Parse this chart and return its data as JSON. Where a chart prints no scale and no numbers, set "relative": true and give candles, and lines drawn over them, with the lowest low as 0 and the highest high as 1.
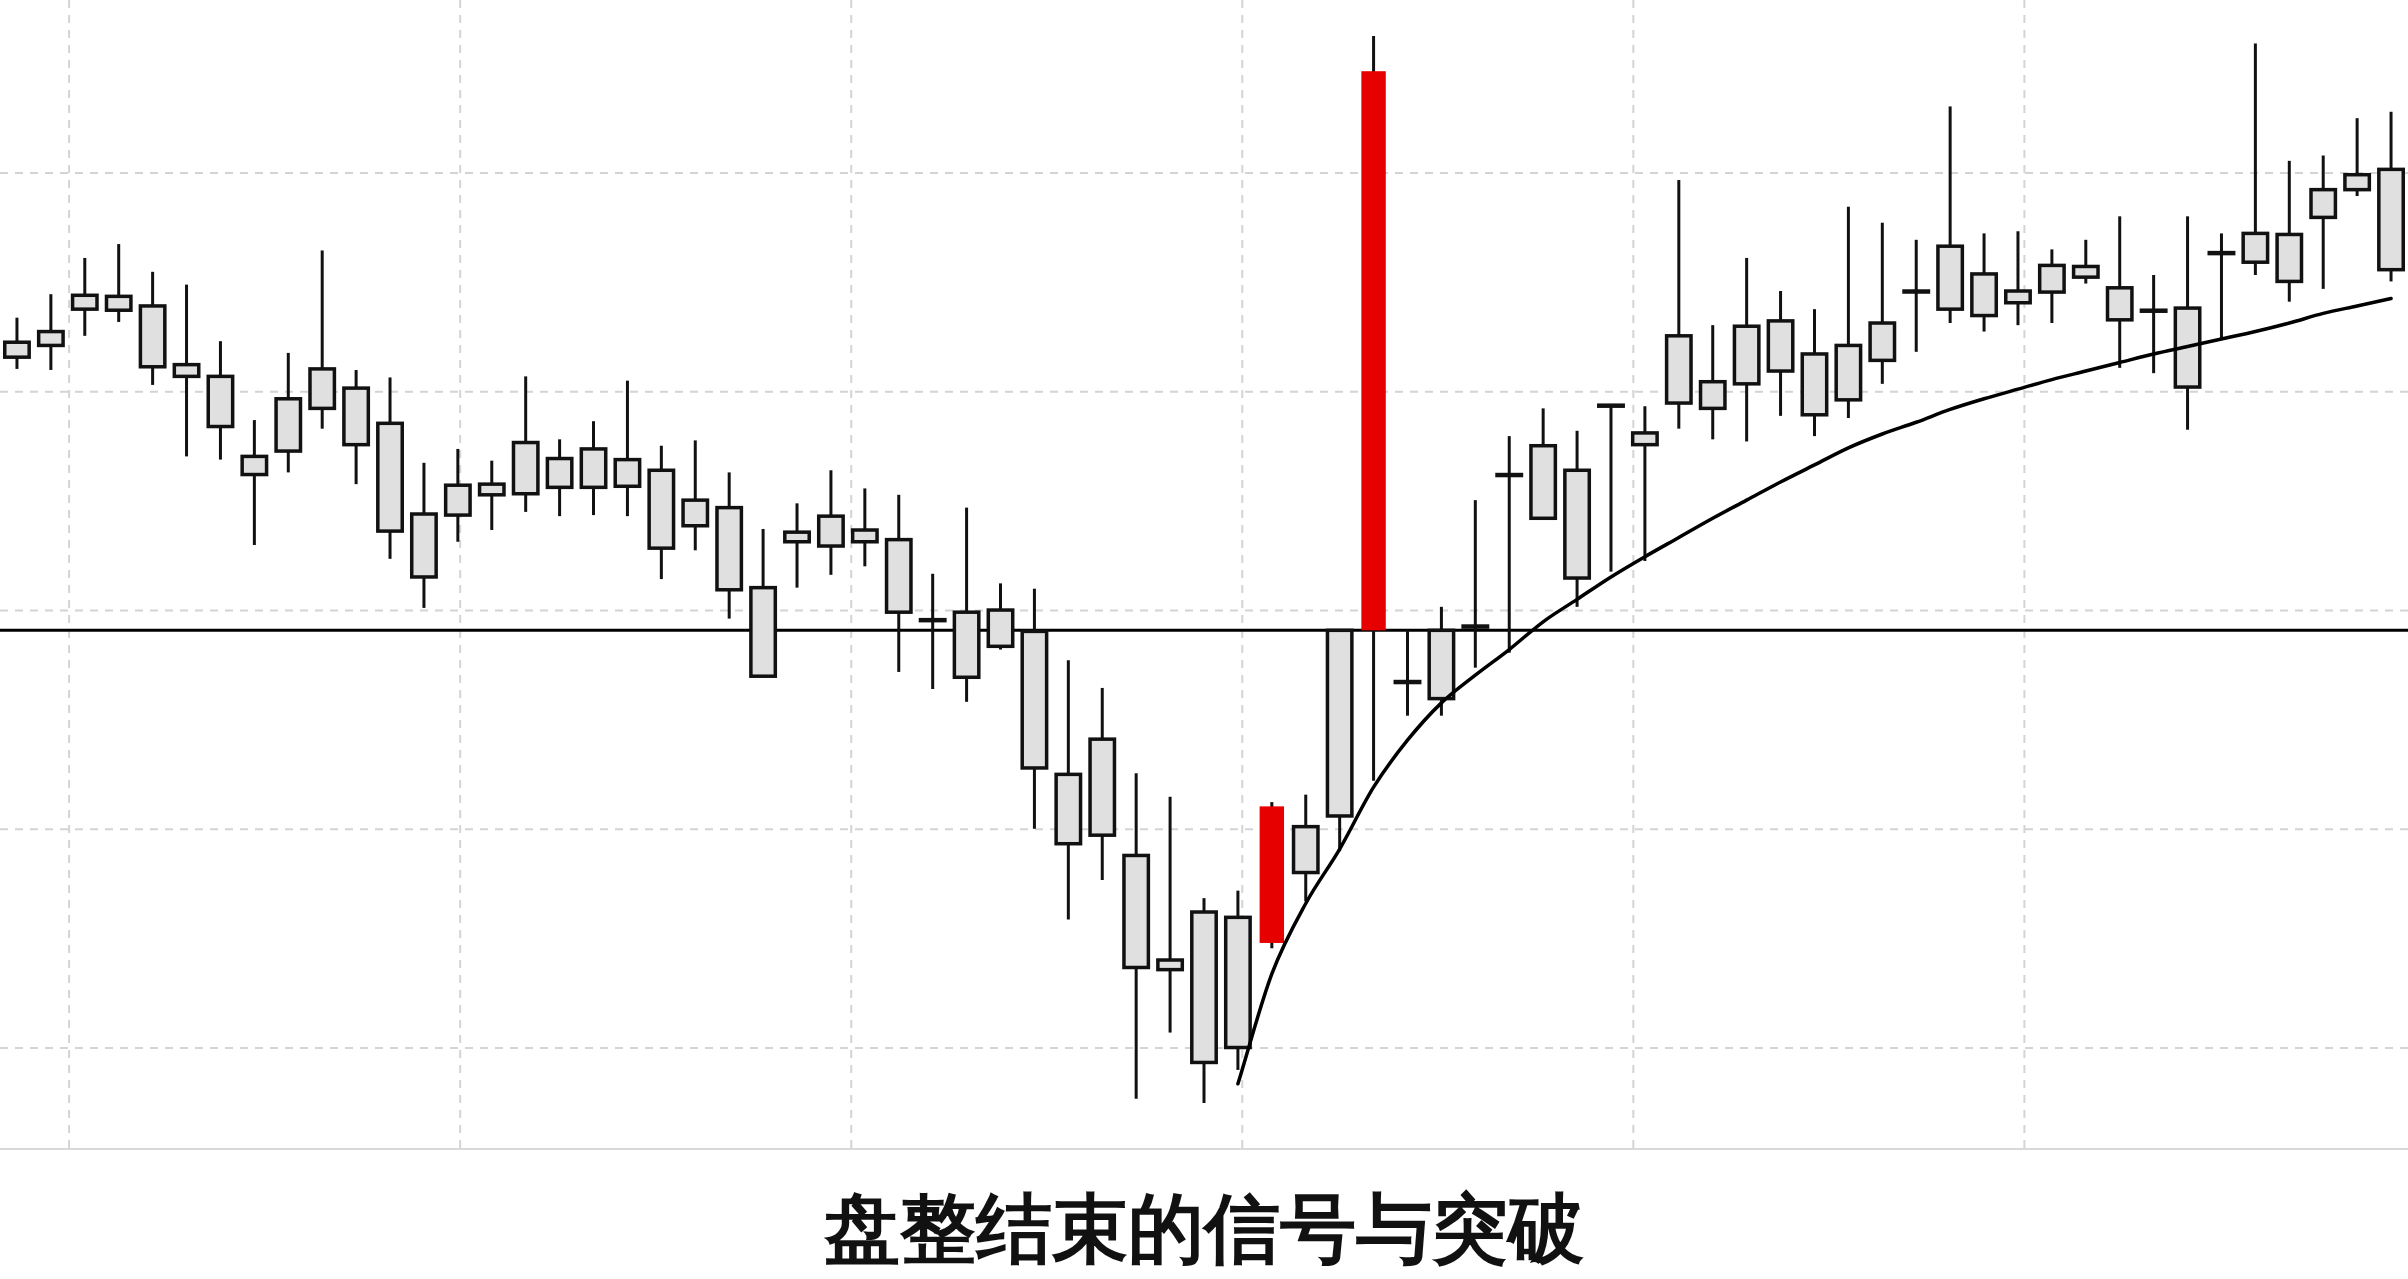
{
  "chart_data": {
    "type": "candlestick",
    "title": "盘整结束的信号与突破",
    "relative": true,
    "grid": true,
    "categories": [
      null,
      null,
      null,
      null,
      null,
      null,
      null,
      null,
      null,
      null,
      null,
      null,
      null,
      null,
      null,
      null,
      null,
      null,
      null,
      null,
      null,
      null,
      null,
      null,
      null,
      null,
      null,
      null,
      null,
      null,
      null,
      null,
      null,
      null,
      null,
      null,
      null,
      null,
      null,
      null,
      null,
      null,
      null,
      null,
      null,
      null,
      null,
      null,
      null,
      null,
      null,
      null,
      null,
      null,
      null,
      null,
      null,
      null,
      null,
      null,
      null,
      null,
      null,
      null,
      null,
      null,
      null,
      null,
      null,
      null,
      null
    ],
    "ohlc": [
      [
        0.699,
        0.736,
        0.688,
        0.713
      ],
      [
        0.71,
        0.758,
        0.687,
        0.723
      ],
      [
        0.744,
        0.792,
        0.719,
        0.757
      ],
      [
        0.743,
        0.805,
        0.732,
        0.756
      ],
      [
        0.69,
        0.779,
        0.673,
        0.747
      ],
      [
        0.681,
        0.767,
        0.606,
        0.692
      ],
      [
        0.634,
        0.714,
        0.603,
        0.681
      ],
      [
        0.589,
        0.64,
        0.523,
        0.606
      ],
      [
        0.611,
        0.703,
        0.591,
        0.66
      ],
      [
        0.651,
        0.799,
        0.632,
        0.688
      ],
      [
        0.617,
        0.687,
        0.58,
        0.67
      ],
      [
        0.536,
        0.68,
        0.51,
        0.637
      ],
      [
        0.493,
        0.6,
        0.464,
        0.552
      ],
      [
        0.551,
        0.613,
        0.526,
        0.579
      ],
      [
        0.57,
        0.602,
        0.537,
        0.58
      ],
      [
        0.571,
        0.681,
        0.554,
        0.619
      ],
      [
        0.577,
        0.622,
        0.55,
        0.604
      ],
      [
        0.577,
        0.639,
        0.551,
        0.613
      ],
      [
        0.578,
        0.677,
        0.55,
        0.603
      ],
      [
        0.52,
        0.616,
        0.491,
        0.593
      ],
      [
        0.541,
        0.621,
        0.518,
        0.565
      ],
      [
        0.481,
        0.591,
        0.454,
        0.558
      ],
      [
        0.4,
        0.538,
        0.4,
        0.483
      ],
      [
        0.526,
        0.562,
        0.483,
        0.535
      ],
      [
        0.522,
        0.593,
        0.495,
        0.55
      ],
      [
        0.526,
        0.576,
        0.503,
        0.537
      ],
      [
        0.46,
        0.57,
        0.404,
        0.528
      ],
      [
        0.453,
        0.496,
        0.388,
        0.453
      ],
      [
        0.399,
        0.558,
        0.376,
        0.46
      ],
      [
        0.428,
        0.487,
        0.425,
        0.462
      ],
      [
        0.314,
        0.482,
        0.257,
        0.442
      ],
      [
        0.243,
        0.415,
        0.172,
        0.308
      ],
      [
        0.251,
        0.389,
        0.209,
        0.341
      ],
      [
        0.127,
        0.309,
        0.004,
        0.232
      ],
      [
        0.125,
        0.287,
        0.066,
        0.134
      ],
      [
        0.038,
        0.192,
        0.0,
        0.179
      ],
      [
        0.052,
        0.199,
        0.031,
        0.174
      ],
      [
        0.15,
        0.282,
        0.145,
        0.278
      ],
      [
        0.216,
        0.289,
        0.189,
        0.259
      ],
      [
        0.269,
        0.443,
        0.236,
        0.443
      ],
      [
        0.443,
        1.0,
        0.302,
        0.967
      ],
      [
        0.395,
        0.443,
        0.363,
        0.395
      ],
      [
        0.379,
        0.465,
        0.363,
        0.443
      ],
      [
        0.447,
        0.565,
        0.408,
        0.447
      ],
      [
        0.589,
        0.625,
        0.422,
        0.589
      ],
      [
        0.548,
        0.651,
        0.548,
        0.616
      ],
      [
        0.492,
        0.63,
        0.465,
        0.593
      ],
      [
        0.654,
        0.654,
        0.498,
        0.654
      ],
      [
        0.617,
        0.653,
        0.508,
        0.628
      ],
      [
        0.656,
        0.865,
        0.632,
        0.719
      ],
      [
        0.651,
        0.729,
        0.622,
        0.676
      ],
      [
        0.674,
        0.792,
        0.62,
        0.728
      ],
      [
        0.686,
        0.761,
        0.644,
        0.733
      ],
      [
        0.645,
        0.744,
        0.625,
        0.702
      ],
      [
        0.659,
        0.84,
        0.642,
        0.71
      ],
      [
        0.696,
        0.825,
        0.674,
        0.731
      ],
      [
        0.761,
        0.809,
        0.704,
        0.761
      ],
      [
        0.744,
        0.934,
        0.731,
        0.803
      ],
      [
        0.738,
        0.815,
        0.723,
        0.777
      ],
      [
        0.75,
        0.817,
        0.729,
        0.761
      ],
      [
        0.76,
        0.8,
        0.731,
        0.785
      ],
      [
        0.774,
        0.809,
        0.768,
        0.784
      ],
      [
        0.734,
        0.831,
        0.689,
        0.764
      ],
      [
        0.743,
        0.776,
        0.684,
        0.743
      ],
      [
        0.671,
        0.831,
        0.631,
        0.745
      ],
      [
        0.797,
        0.815,
        0.715,
        0.797
      ],
      [
        0.788,
        0.993,
        0.776,
        0.815
      ],
      [
        0.77,
        0.883,
        0.751,
        0.814
      ],
      [
        0.83,
        0.888,
        0.763,
        0.856
      ],
      [
        0.856,
        0.923,
        0.85,
        0.87
      ],
      [
        0.781,
        0.929,
        0.77,
        0.875
      ]
    ],
    "colors": [
      "#e0e0e0",
      "#e0e0e0",
      "#e0e0e0",
      "#e0e0e0",
      "#e0e0e0",
      "#e0e0e0",
      "#e0e0e0",
      "#e0e0e0",
      "#e0e0e0",
      "#e0e0e0",
      "#e0e0e0",
      "#e0e0e0",
      "#e0e0e0",
      "#e0e0e0",
      "#e0e0e0",
      "#e0e0e0",
      "#e0e0e0",
      "#e0e0e0",
      "#e0e0e0",
      "#e0e0e0",
      "#e0e0e0",
      "#e0e0e0",
      "#e0e0e0",
      "#e0e0e0",
      "#e0e0e0",
      "#e0e0e0",
      "#e0e0e0",
      "#e0e0e0",
      "#e0e0e0",
      "#e0e0e0",
      "#e0e0e0",
      "#e0e0e0",
      "#e0e0e0",
      "#e0e0e0",
      "#e0e0e0",
      "#e0e0e0",
      "#e0e0e0",
      "#e60000",
      "#e0e0e0",
      "#e0e0e0",
      "#e60000",
      "#e0e0e0",
      "#e0e0e0",
      "#e0e0e0",
      "#e0e0e0",
      "#e0e0e0",
      "#e0e0e0",
      "#e0e0e0",
      "#e0e0e0",
      "#e0e0e0",
      "#e0e0e0",
      "#e0e0e0",
      "#e0e0e0",
      "#e0e0e0",
      "#e0e0e0",
      "#e0e0e0",
      "#e0e0e0",
      "#e0e0e0",
      "#e0e0e0",
      "#e0e0e0",
      "#e0e0e0",
      "#e0e0e0",
      "#e0e0e0",
      "#e0e0e0",
      "#e0e0e0",
      "#e0e0e0",
      "#e0e0e0",
      "#e0e0e0",
      "#e0e0e0",
      "#e0e0e0",
      "#e0e0e0"
    ],
    "series": [
      {
        "type": "line",
        "color": "#000000",
        "values": [
          null,
          null,
          null,
          null,
          null,
          null,
          null,
          null,
          null,
          null,
          null,
          null,
          null,
          null,
          null,
          null,
          null,
          null,
          null,
          null,
          null,
          null,
          null,
          null,
          null,
          null,
          null,
          null,
          null,
          null,
          null,
          null,
          null,
          null,
          null,
          null,
          0.018,
          0.121,
          0.187,
          0.238,
          0.296,
          0.34,
          0.375,
          0.401,
          0.425,
          0.451,
          0.472,
          0.493,
          0.512,
          0.53,
          0.548,
          0.565,
          0.582,
          0.598,
          0.614,
          0.627,
          0.638,
          0.65,
          0.66,
          0.669,
          0.678,
          0.686,
          0.694,
          0.702,
          0.709,
          0.716,
          0.723,
          0.731,
          0.74,
          0.747,
          0.754
        ]
      }
    ],
    "ref_lines": [
      {
        "axis": "y",
        "value": 0.443,
        "color": "#000000"
      }
    ]
  }
}
